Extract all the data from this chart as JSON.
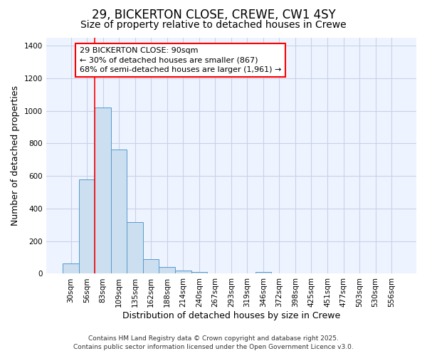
{
  "title_line1": "29, BICKERTON CLOSE, CREWE, CW1 4SY",
  "title_line2": "Size of property relative to detached houses in Crewe",
  "xlabel": "Distribution of detached houses by size in Crewe",
  "ylabel": "Number of detached properties",
  "categories": [
    "30sqm",
    "56sqm",
    "83sqm",
    "109sqm",
    "135sqm",
    "162sqm",
    "188sqm",
    "214sqm",
    "240sqm",
    "267sqm",
    "293sqm",
    "319sqm",
    "346sqm",
    "372sqm",
    "398sqm",
    "425sqm",
    "451sqm",
    "477sqm",
    "503sqm",
    "530sqm",
    "556sqm"
  ],
  "values": [
    65,
    580,
    1020,
    760,
    315,
    90,
    40,
    20,
    10,
    0,
    0,
    0,
    10,
    0,
    0,
    0,
    0,
    0,
    0,
    0,
    0
  ],
  "bar_color": "#ccdff0",
  "bar_edge_color": "#5599cc",
  "grid_color": "#c8d0e8",
  "bg_color": "#ffffff",
  "plot_bg_color": "#eef4ff",
  "vline_x": 1.5,
  "vline_color": "red",
  "annotation_text": "29 BICKERTON CLOSE: 90sqm\n← 30% of detached houses are smaller (867)\n68% of semi-detached houses are larger (1,961) →",
  "annotation_box_color": "white",
  "annotation_box_edge": "red",
  "ylim": [
    0,
    1450
  ],
  "yticks": [
    0,
    200,
    400,
    600,
    800,
    1000,
    1200,
    1400
  ],
  "footer_line1": "Contains HM Land Registry data © Crown copyright and database right 2025.",
  "footer_line2": "Contains public sector information licensed under the Open Government Licence v3.0.",
  "title_fontsize": 12,
  "subtitle_fontsize": 10,
  "axis_label_fontsize": 9,
  "tick_fontsize": 7.5,
  "annotation_fontsize": 8,
  "footer_fontsize": 6.5
}
